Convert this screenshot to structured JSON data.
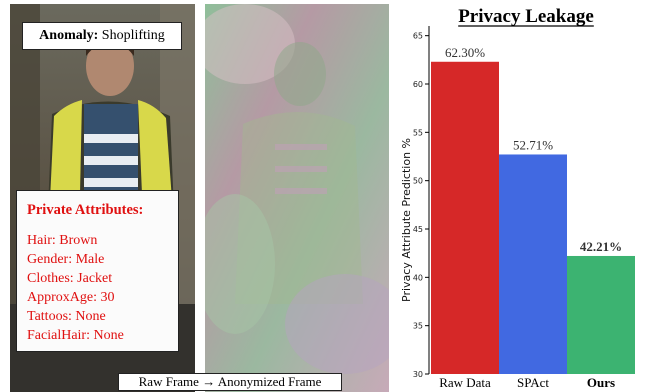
{
  "left": {
    "anomaly_label": "Anomaly:",
    "anomaly_value": "Shoplifting",
    "private_title": "Private Attributes:",
    "attributes": [
      "Hair: Brown",
      "Gender: Male",
      "Clothes: Jacket",
      "ApproxAge: 30",
      "Tattoos: None",
      "FacialHair: None"
    ],
    "caption_raw": "Raw Frame",
    "caption_arrow": "→",
    "caption_anon": "Anonymized Frame"
  },
  "chart_data": {
    "type": "bar",
    "title": "Privacy Leakage",
    "ylabel": "Privacy Attribute Prediction %",
    "categories": [
      "Raw Data",
      "SPAct",
      "Ours"
    ],
    "values": [
      62.3,
      52.71,
      42.21
    ],
    "value_labels": [
      "62.30%",
      "52.71%",
      "42.21%"
    ],
    "colors": [
      "#d62828",
      "#4169e1",
      "#3cb371"
    ],
    "bold_category": "Ours",
    "ylim": [
      30,
      66
    ],
    "yticks": [
      30,
      35,
      40,
      45,
      50,
      55,
      60,
      65
    ],
    "grid": false
  }
}
